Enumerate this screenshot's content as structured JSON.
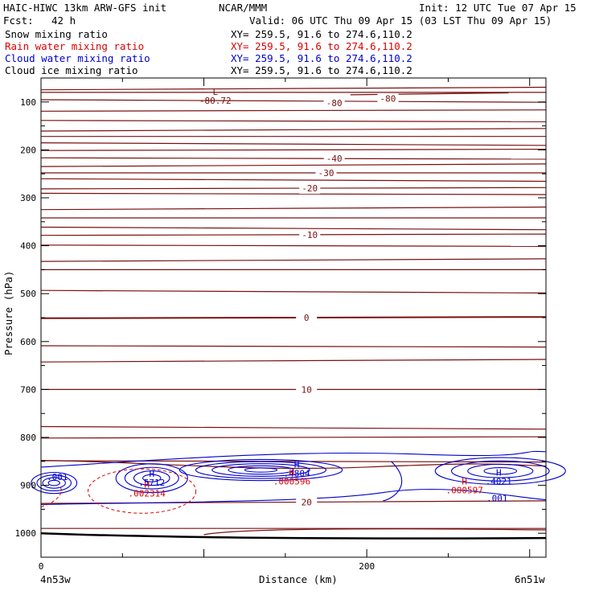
{
  "header": {
    "model": "HAIC-HIWC 13km ARW-GFS init",
    "source": "NCAR/MMM",
    "init": "Init: 12 UTC Tue 07 Apr 15",
    "fcst_label": "Fcst:",
    "fcst_value": "42 h",
    "valid": "Valid: 06 UTC Thu 09 Apr 15 (03 LST Thu 09 Apr 15)"
  },
  "fields": [
    {
      "name": "Snow mixing ratio",
      "xy": "XY= 259.5, 91.6 to 274.6,110.2",
      "color": "#000000"
    },
    {
      "name": "Rain water mixing ratio",
      "xy": "XY= 259.5, 91.6 to 274.6,110.2",
      "color": "#dd0000"
    },
    {
      "name": "Cloud water mixing ratio",
      "xy": "XY= 259.5, 91.6 to 274.6,110.2",
      "color": "#0000cc"
    },
    {
      "name": "Cloud ice mixing ratio",
      "xy": "XY= 259.5, 91.6 to 274.6,110.2",
      "color": "#000000"
    }
  ],
  "colors": {
    "temperature": "#7a1010",
    "cloud_water": "#0000cc",
    "rain_water": "#dd0000",
    "snow": "#000000",
    "axis": "#000000"
  },
  "chart_data": {
    "type": "contour cross-section",
    "xlabel": "Distance (km)",
    "ylabel": "Pressure (hPa)",
    "x_left_label": "4n53w",
    "x_right_label": "6n51w",
    "xlim": [
      0,
      310
    ],
    "ylim": [
      1050,
      50
    ],
    "x_ticks": [
      0,
      200
    ],
    "y_ticks": [
      100,
      200,
      300,
      400,
      500,
      600,
      700,
      800,
      900,
      1000
    ],
    "temperature_contour_pressures": [
      72,
      80,
      98,
      118,
      140,
      158,
      172,
      188,
      200,
      218,
      232,
      248,
      263,
      280,
      292,
      322,
      342,
      364,
      377,
      400,
      430,
      450,
      496,
      550,
      610,
      640,
      700,
      780,
      800,
      850,
      935,
      990
    ],
    "temperature_labels": [
      {
        "text": "-80",
        "x": 180,
        "p": 102
      },
      {
        "text": "-80",
        "x": 213,
        "p": 93
      },
      {
        "text": "-40",
        "x": 180,
        "p": 218
      },
      {
        "text": "-30",
        "x": 175,
        "p": 248
      },
      {
        "text": "-20",
        "x": 165,
        "p": 280
      },
      {
        "text": "-10",
        "x": 165,
        "p": 377
      },
      {
        "text": "0",
        "x": 163,
        "p": 550
      },
      {
        "text": "10",
        "x": 163,
        "p": 700
      },
      {
        "text": "20",
        "x": 163,
        "p": 935
      }
    ],
    "extrema": [
      {
        "kind": "L",
        "value": "-80.72",
        "x": 107,
        "p": 85,
        "field": "temperature"
      },
      {
        "kind": "H",
        "value": ".5712",
        "x": 68,
        "p": 882,
        "field": "cloud_water"
      },
      {
        "kind": "H",
        "value": ".4804",
        "x": 157,
        "p": 863,
        "field": "cloud_water"
      },
      {
        "kind": "H",
        "value": ".4021",
        "x": 281,
        "p": 880,
        "field": "cloud_water"
      },
      {
        "kind": "H",
        "value": ".002314",
        "x": 65,
        "p": 905,
        "field": "rain_water"
      },
      {
        "kind": "H",
        "value": ".000596",
        "x": 154,
        "p": 880,
        "field": "rain_water"
      },
      {
        "kind": "H",
        "value": ".000597",
        "x": 260,
        "p": 898,
        "field": "rain_water"
      }
    ],
    "contour_labels": [
      {
        "text": ".001",
        "x": 10,
        "p": 882,
        "field": "cloud_water"
      },
      {
        "text": ".001",
        "x": 280,
        "p": 927,
        "field": "cloud_water"
      }
    ]
  }
}
